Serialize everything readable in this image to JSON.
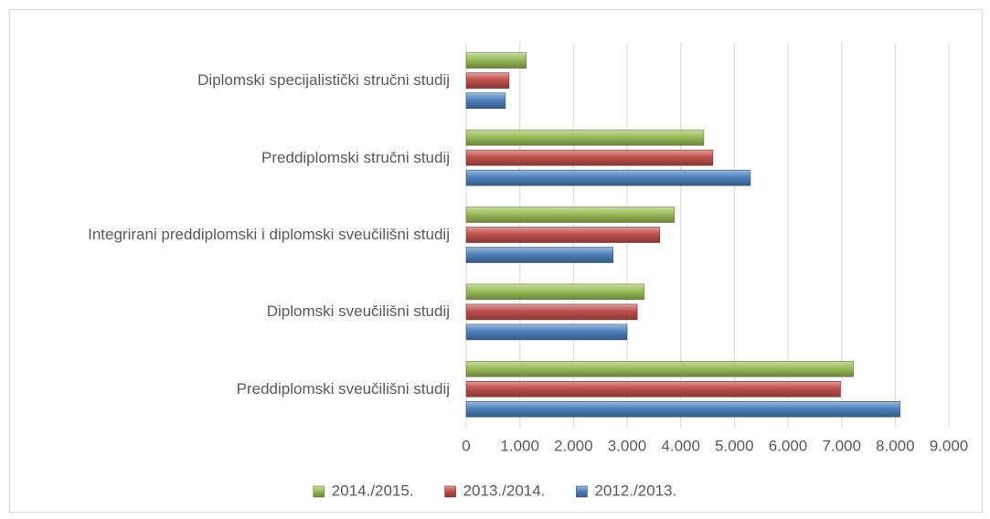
{
  "chart_data": {
    "type": "bar",
    "orientation": "horizontal",
    "categories": [
      "Diplomski specijalistički stručni studij",
      "Preddiplomski stručni studij",
      "Integrirani preddiplomski i diplomski sveučilišni studij",
      "Diplomski sveučilišni studij",
      "Preddiplomski sveučilišni studij"
    ],
    "series": [
      {
        "name": "2014./2015.",
        "color": "#9bbb59",
        "values": [
          1120,
          4430,
          3880,
          3320,
          7220
        ]
      },
      {
        "name": "2013./2014.",
        "color": "#c0504d",
        "values": [
          800,
          4600,
          3610,
          3190,
          6980
        ]
      },
      {
        "name": "2012./2013.",
        "color": "#4f81bd",
        "values": [
          730,
          5300,
          2740,
          3000,
          8090
        ]
      }
    ],
    "xlim": [
      0,
      9000
    ],
    "xticks": [
      0,
      {
        "value": 1000,
        "label": "1.000"
      },
      {
        "value": 2000,
        "label": "2.000"
      },
      {
        "value": 3000,
        "label": "3.000"
      },
      {
        "value": 4000,
        "label": "4.000"
      },
      {
        "value": 5000,
        "label": "5.000"
      },
      {
        "value": 6000,
        "label": "6.000"
      },
      {
        "value": 7000,
        "label": "7.000"
      },
      {
        "value": 8000,
        "label": "8.000"
      },
      {
        "value": 9000,
        "label": "9.000"
      }
    ],
    "grid": true,
    "legend": "bottom"
  }
}
